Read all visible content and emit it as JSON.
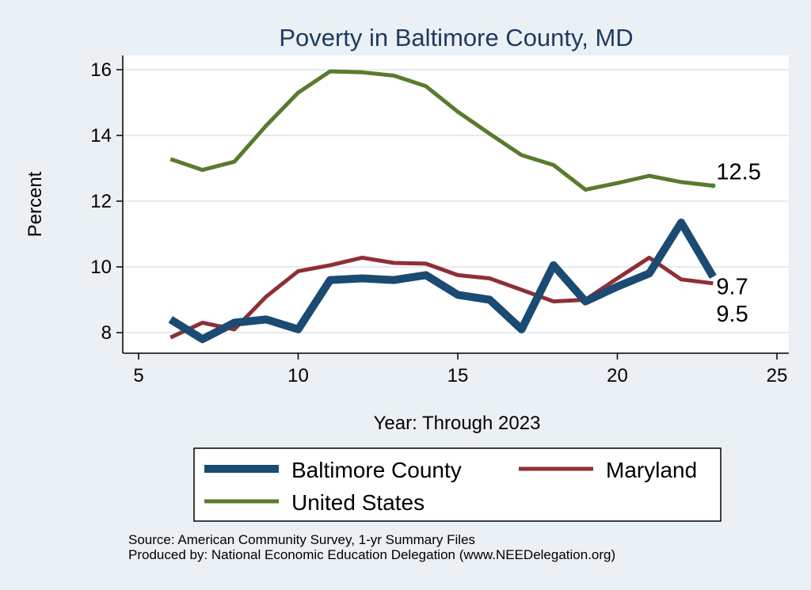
{
  "chart_data": {
    "type": "line",
    "title": "Poverty in Baltimore County, MD",
    "xlabel": "Year: Through 2023",
    "ylabel": "Percent",
    "xlim": [
      5,
      25
    ],
    "ylim": [
      7.5,
      16.3
    ],
    "x_ticks": [
      5,
      10,
      15,
      20,
      25
    ],
    "y_ticks": [
      8,
      10,
      12,
      14,
      16
    ],
    "grid": true,
    "legend_position": "bottom",
    "series": [
      {
        "name": "Baltimore County",
        "color": "#1b4a72",
        "x": [
          6,
          7,
          8,
          9,
          10,
          11,
          12,
          13,
          14,
          15,
          16,
          17,
          18,
          19,
          20,
          21,
          22,
          23
        ],
        "values": [
          8.4,
          7.8,
          8.3,
          8.4,
          8.1,
          9.6,
          9.65,
          9.6,
          9.75,
          9.15,
          9.0,
          8.1,
          10.05,
          8.95,
          9.4,
          9.8,
          11.35,
          9.7
        ],
        "end_label": "9.7"
      },
      {
        "name": "Maryland",
        "color": "#8e2f36",
        "x": [
          6,
          7,
          8,
          9,
          10,
          11,
          12,
          13,
          14,
          15,
          16,
          17,
          18,
          19,
          20,
          21,
          22,
          23
        ],
        "values": [
          7.85,
          8.3,
          8.1,
          9.1,
          9.87,
          10.05,
          10.28,
          10.12,
          10.1,
          9.75,
          9.65,
          9.3,
          8.95,
          9.0,
          9.65,
          10.28,
          9.62,
          9.5
        ],
        "end_label": "9.5"
      },
      {
        "name": "United States",
        "color": "#5a7a2e",
        "x": [
          6,
          7,
          8,
          9,
          10,
          11,
          12,
          13,
          14,
          15,
          16,
          17,
          18,
          19,
          20,
          21,
          22,
          23
        ],
        "values": [
          13.28,
          12.95,
          13.2,
          14.3,
          15.3,
          15.95,
          15.92,
          15.82,
          15.5,
          14.72,
          14.05,
          13.4,
          13.1,
          12.35,
          12.55,
          12.77,
          12.58,
          12.47
        ],
        "end_label": "12.5"
      }
    ],
    "source_note": "Source: American Community Survey, 1-yr Summary Files",
    "produced_by": "Produced by: National Economic Education Delegation (www.NEEDelegation.org)"
  }
}
